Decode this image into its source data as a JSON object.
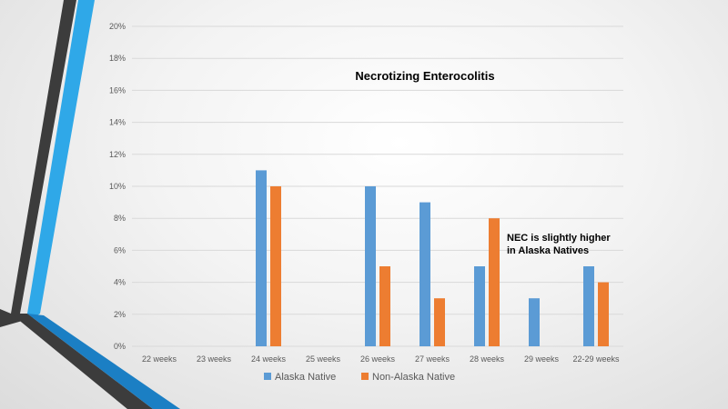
{
  "colors": {
    "alaska_native": "#5b9bd5",
    "non_alaska_native": "#ed7d31",
    "grid": "#d9d9d9"
  },
  "chart_data": {
    "type": "bar",
    "title": "Necrotizing Enterocolitis",
    "categories": [
      "22 weeks",
      "23 weeks",
      "24 weeks",
      "25 weeks",
      "26 weeks",
      "27 weeks",
      "28 weeks",
      "29 weeks",
      "22-29 weeks"
    ],
    "series": [
      {
        "name": "Alaska Native",
        "values": [
          0,
          0,
          11,
          0,
          10,
          9,
          5,
          3,
          5
        ]
      },
      {
        "name": "Non-Alaska Native",
        "values": [
          0,
          0,
          10,
          0,
          5,
          3,
          8,
          0,
          4
        ]
      }
    ],
    "y_ticks": [
      "0%",
      "2%",
      "4%",
      "6%",
      "8%",
      "10%",
      "12%",
      "14%",
      "16%",
      "18%",
      "20%"
    ],
    "ylim": [
      0,
      20
    ],
    "grid": true,
    "legend_position": "bottom",
    "annotation": [
      "NEC is slightly higher",
      "in Alaska Natives"
    ]
  }
}
